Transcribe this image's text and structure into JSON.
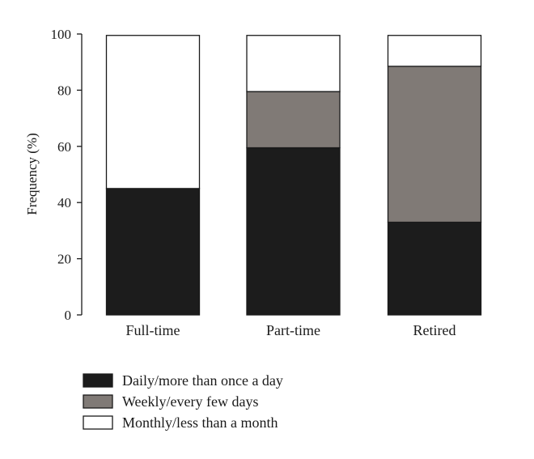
{
  "chart_data": {
    "type": "bar",
    "stacked": true,
    "categories": [
      "Full-time",
      "Part-time",
      "Retired"
    ],
    "series": [
      {
        "name": "Daily/more than once a day",
        "values": [
          45,
          59.5,
          33
        ],
        "color": "#1c1c1c"
      },
      {
        "name": "Weekly/every few days",
        "values": [
          0,
          20,
          55.5
        ],
        "color": "#807a76"
      },
      {
        "name": "Monthly/less than a month",
        "values": [
          54.5,
          20,
          11
        ],
        "color": "#ffffff"
      }
    ],
    "ylabel": "Frequency (%)",
    "ylim": [
      0,
      100
    ],
    "yticks": [
      "0",
      "20",
      "40",
      "60",
      "80",
      "100"
    ],
    "grid": false,
    "legend": "bottom"
  }
}
